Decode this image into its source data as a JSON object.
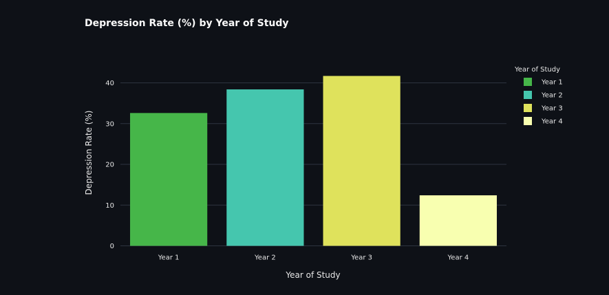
{
  "chart_data": {
    "type": "bar",
    "title": "Depression Rate (%) by Year of Study",
    "xlabel": "Year of Study",
    "ylabel": "Depression Rate (%)",
    "categories": [
      "Year 1",
      "Year 2",
      "Year 3",
      "Year 4"
    ],
    "values": [
      32.6,
      38.4,
      41.7,
      12.4
    ],
    "colors": [
      "#46b649",
      "#45c6ae",
      "#dfe25c",
      "#f8ffb0"
    ],
    "ylim": [
      0,
      43.8
    ],
    "yticks": [
      0,
      10,
      20,
      30,
      40
    ],
    "grid": true,
    "legend": {
      "title": "Year of Study",
      "placement": "right",
      "entries": [
        "Year 1",
        "Year 2",
        "Year 3",
        "Year 4"
      ]
    }
  },
  "theme": {
    "background": "#0e1117",
    "gridline": "#2e3440",
    "text": "#e6e6e6"
  }
}
